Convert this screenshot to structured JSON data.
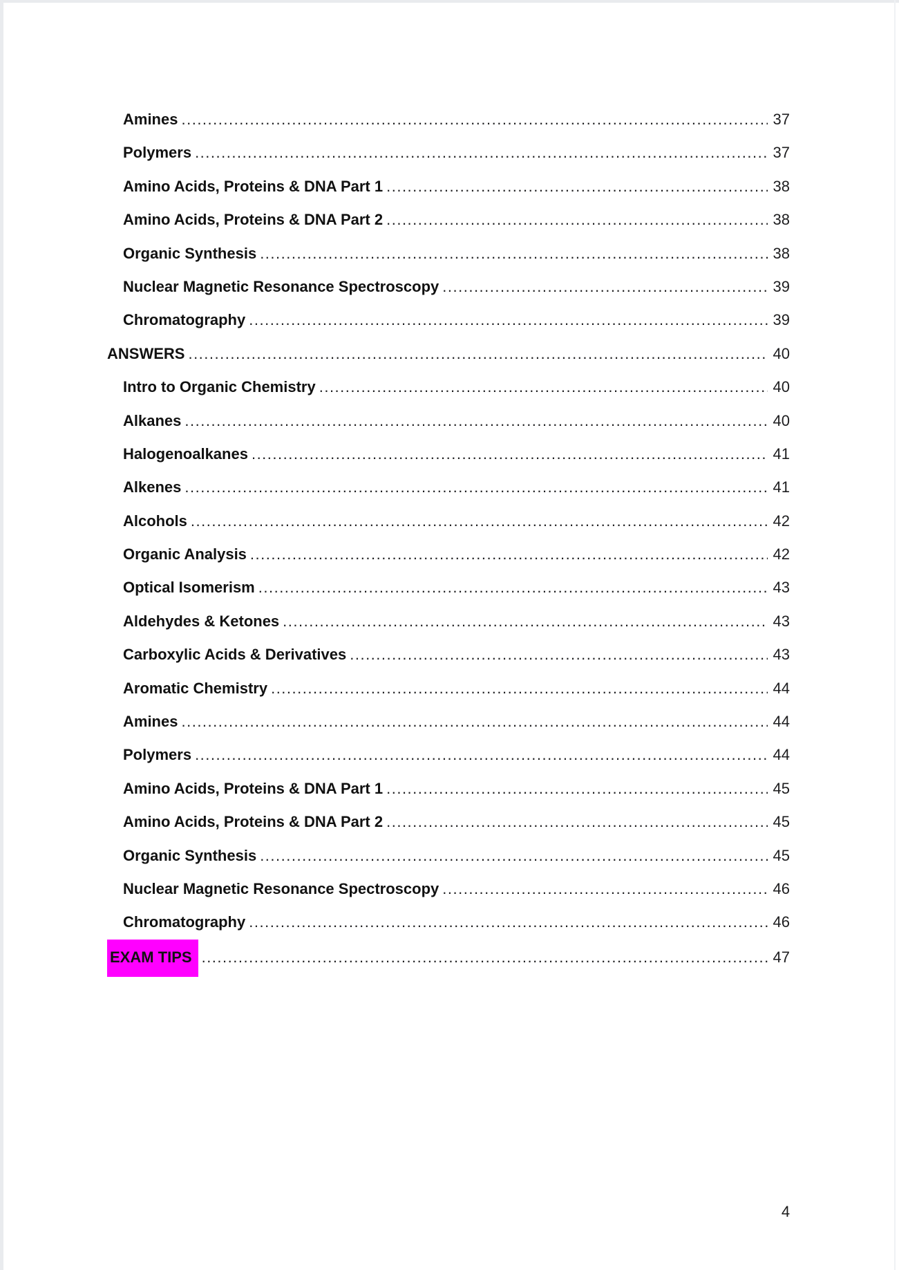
{
  "document": {
    "footer_page_number": "4"
  },
  "colors": {
    "highlight": "#ff00ff",
    "text": "#111111"
  },
  "toc": {
    "entries": [
      {
        "label": "Amines",
        "page": "37",
        "level": 2,
        "highlight": false
      },
      {
        "label": "Polymers",
        "page": "37",
        "level": 2,
        "highlight": false
      },
      {
        "label": "Amino Acids, Proteins & DNA Part 1",
        "page": "38",
        "level": 2,
        "highlight": false
      },
      {
        "label": "Amino Acids, Proteins & DNA Part 2",
        "page": "38",
        "level": 2,
        "highlight": false
      },
      {
        "label": "Organic Synthesis",
        "page": "38",
        "level": 2,
        "highlight": false
      },
      {
        "label": "Nuclear Magnetic Resonance Spectroscopy",
        "page": "39",
        "level": 2,
        "highlight": false
      },
      {
        "label": "Chromatography",
        "page": "39",
        "level": 2,
        "highlight": false
      },
      {
        "label": "ANSWERS",
        "page": "40",
        "level": 1,
        "highlight": false
      },
      {
        "label": "Intro to Organic Chemistry",
        "page": "40",
        "level": 2,
        "highlight": false
      },
      {
        "label": "Alkanes",
        "page": "40",
        "level": 2,
        "highlight": false
      },
      {
        "label": "Halogenoalkanes",
        "page": "41",
        "level": 2,
        "highlight": false
      },
      {
        "label": "Alkenes",
        "page": "41",
        "level": 2,
        "highlight": false
      },
      {
        "label": "Alcohols",
        "page": "42",
        "level": 2,
        "highlight": false
      },
      {
        "label": "Organic Analysis",
        "page": "42",
        "level": 2,
        "highlight": false
      },
      {
        "label": "Optical Isomerism",
        "page": "43",
        "level": 2,
        "highlight": false
      },
      {
        "label": "Aldehydes & Ketones",
        "page": "43",
        "level": 2,
        "highlight": false
      },
      {
        "label": "Carboxylic Acids & Derivatives",
        "page": "43",
        "level": 2,
        "highlight": false
      },
      {
        "label": "Aromatic Chemistry",
        "page": "44",
        "level": 2,
        "highlight": false
      },
      {
        "label": "Amines",
        "page": "44",
        "level": 2,
        "highlight": false
      },
      {
        "label": "Polymers",
        "page": "44",
        "level": 2,
        "highlight": false
      },
      {
        "label": "Amino Acids, Proteins & DNA Part 1",
        "page": "45",
        "level": 2,
        "highlight": false
      },
      {
        "label": "Amino Acids, Proteins & DNA Part 2",
        "page": "45",
        "level": 2,
        "highlight": false
      },
      {
        "label": "Organic Synthesis",
        "page": "45",
        "level": 2,
        "highlight": false
      },
      {
        "label": "Nuclear Magnetic Resonance Spectroscopy",
        "page": "46",
        "level": 2,
        "highlight": false
      },
      {
        "label": "Chromatography",
        "page": "46",
        "level": 2,
        "highlight": false
      },
      {
        "label": "EXAM TIPS",
        "page": "47",
        "level": 1,
        "highlight": true
      }
    ]
  }
}
